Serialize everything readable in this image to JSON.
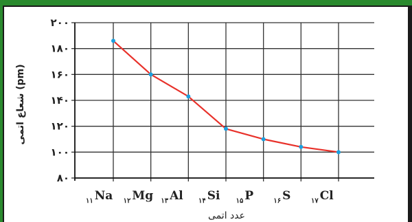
{
  "chart_data": {
    "type": "line",
    "title": "",
    "xlabel": "عدد اتمی",
    "ylabel": "شعاع اتمی (pm)",
    "ylim": [
      80,
      200
    ],
    "yticks": [
      80,
      100,
      120,
      140,
      160,
      180,
      200
    ],
    "ytick_labels": [
      "۸۰",
      "۱۰۰",
      "۱۲۰",
      "۱۴۰",
      "۱۶۰",
      "۱۸۰",
      "۲۰۰"
    ],
    "categories": [
      {
        "number": "۱۱",
        "symbol": "Na"
      },
      {
        "number": "۱۲",
        "symbol": "Mg"
      },
      {
        "number": "۱۳",
        "symbol": "Al"
      },
      {
        "number": "۱۴",
        "symbol": "Si"
      },
      {
        "number": "۱۵",
        "symbol": "P"
      },
      {
        "number": "۱۶",
        "symbol": "S"
      },
      {
        "number": "۱۷",
        "symbol": "Cl"
      }
    ],
    "values": [
      186,
      160,
      143,
      118,
      110,
      104,
      100
    ],
    "grid": true,
    "colors": {
      "line": "#e8312a",
      "marker": "#1aa0e0",
      "grid": "#333333",
      "frame_green": "#2a8a2e",
      "frame_dark": "#1a1a1a"
    }
  }
}
